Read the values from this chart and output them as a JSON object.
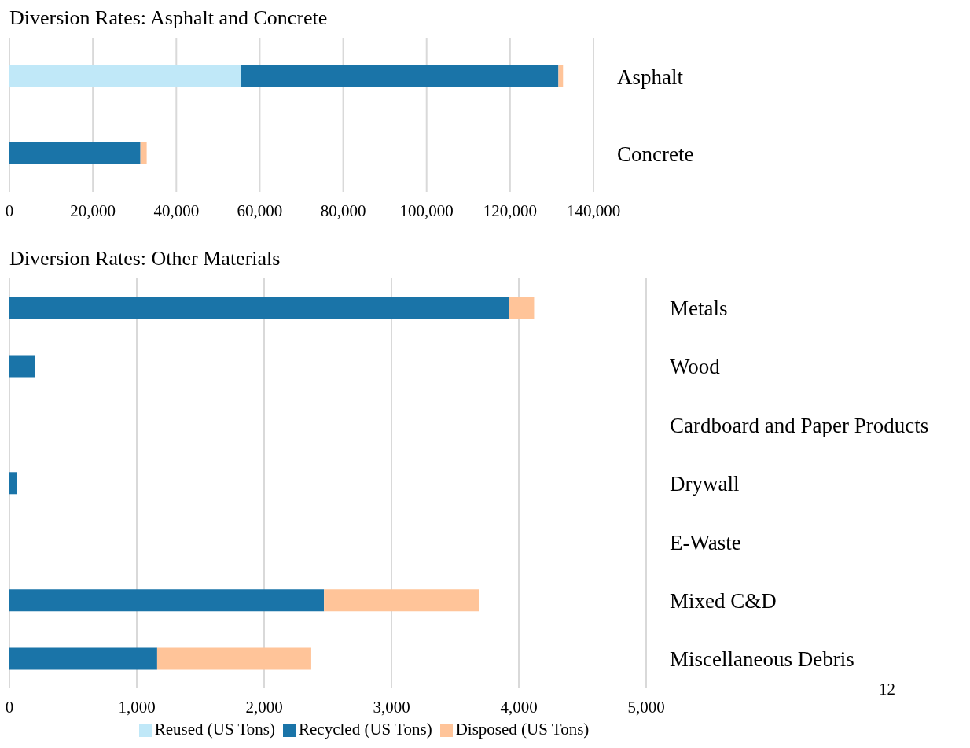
{
  "chart_data": [
    {
      "type": "bar",
      "title": "Diversion Rates: Asphalt and Concrete",
      "orientation": "horizontal",
      "stacked": true,
      "categories": [
        "Asphalt",
        "Concrete"
      ],
      "series": [
        {
          "color": "#c0e8f8",
          "values": [
            55500,
            0
          ]
        },
        {
          "color": "#1a74a8",
          "values": [
            76100,
            31400
          ]
        },
        {
          "color": "#ffc499",
          "values": [
            1100,
            1500
          ]
        }
      ],
      "xlim": [
        0,
        140000
      ],
      "xticks": [
        0,
        {
          "value": 20000,
          "label": "20,000"
        },
        {
          "value": 40000,
          "label": "40,000"
        },
        {
          "value": 60000,
          "label": "60,000"
        },
        {
          "value": 80000,
          "label": "80,000"
        },
        {
          "value": 100000,
          "label": "100,000"
        },
        {
          "value": 120000,
          "label": "120,000"
        },
        {
          "value": 140000,
          "label": "140,000"
        }
      ],
      "grid": "x",
      "legend": false
    },
    {
      "type": "bar",
      "title": "Diversion Rates: Other Materials",
      "orientation": "horizontal",
      "stacked": true,
      "categories": [
        "Metals",
        "Wood",
        "Cardboard and Paper Products",
        "Drywall",
        "E-Waste",
        "Mixed C&D",
        "Miscellaneous Debris"
      ],
      "series": [
        {
          "name": "Reused (US Tons)",
          "color": "#c0e8f8",
          "values": [
            0,
            0,
            0,
            0,
            0,
            0,
            0
          ]
        },
        {
          "name": "Recycled (US Tons)",
          "color": "#1a74a8",
          "values": [
            3920,
            200,
            0,
            60,
            0,
            2470,
            1160
          ]
        },
        {
          "name": "Disposed (US Tons)",
          "color": "#ffc499",
          "values": [
            200,
            0,
            0,
            0,
            0,
            1220,
            1210
          ]
        }
      ],
      "xlim": [
        0,
        5000
      ],
      "xticks": [
        0,
        {
          "value": 1000,
          "label": "1,000"
        },
        {
          "value": 2000,
          "label": "2,000"
        },
        {
          "value": 3000,
          "label": "3,000"
        },
        {
          "value": 4000,
          "label": "4,000"
        },
        {
          "value": 5000,
          "label": "5,000"
        }
      ],
      "grid": "x",
      "legend": "bottom",
      "annotations": [
        "12"
      ]
    }
  ]
}
